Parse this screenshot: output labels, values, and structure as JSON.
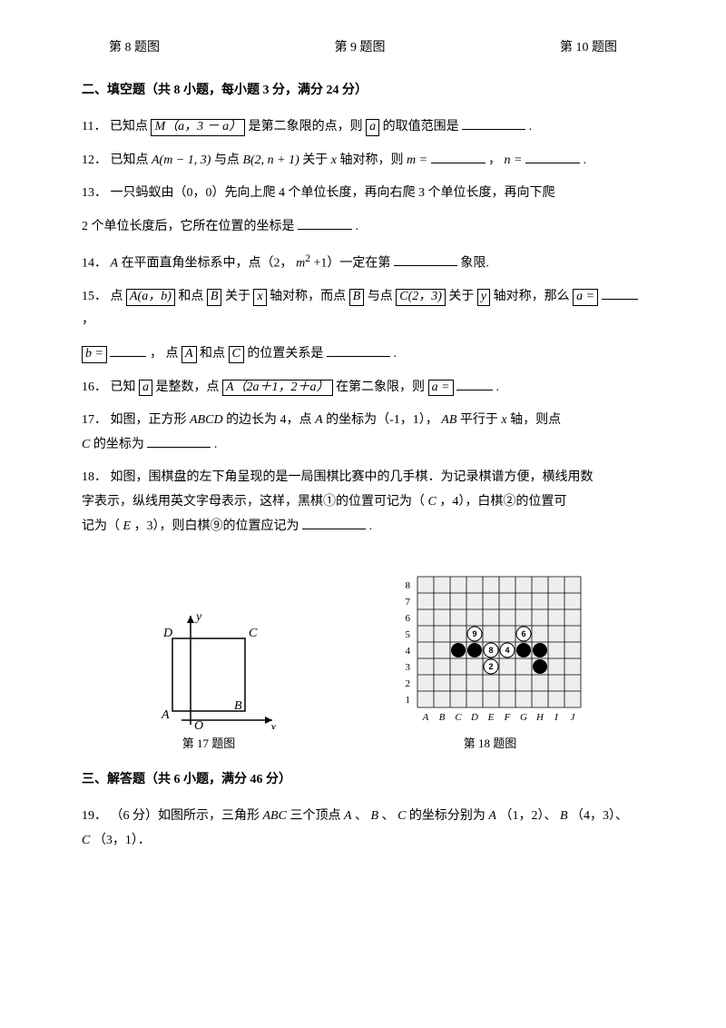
{
  "figLabels": [
    "第 8 题图",
    "第 9 题图",
    "第 10 题图"
  ],
  "section2": {
    "header": "二、填空题（共 8 小题，每小题 3 分，满分 24 分）"
  },
  "q11": {
    "num": "11．",
    "t1": "已知点",
    "box1": "M（a，3 － a）",
    "t2": "是第二象限的点，则",
    "box2": "a",
    "t3": "的取值范围是",
    "t4": "."
  },
  "q12": {
    "num": "12．",
    "t1": "已知点 ",
    "expr1": "A(m − 1, 3)",
    "t2": " 与点 ",
    "expr2": "B(2,  n + 1)",
    "t3": " 关于 ",
    "x": "x",
    "t4": " 轴对称，则 ",
    "m": "m =",
    "t5": "，  ",
    "n": "n =",
    "t6": "."
  },
  "q13": {
    "num": "13．",
    "line1": "一只蚂蚁由（0，0）先向上爬 4 个单位长度，再向右爬 3 个单位长度，再向下爬",
    "line2": "2 个单位长度后，它所在位置的坐标是",
    "t3": "."
  },
  "q14": {
    "num": "14．",
    "t1": "A",
    "t2": " 在平面直角坐标系中，点（2， ",
    "expr": "m",
    "sup": "2",
    "t3": " +1）一定在第 ",
    "t4": "象限."
  },
  "q15": {
    "num": "15．",
    "t1": "点",
    "box1": "A(a，b)",
    "t2": "和点",
    "box2": "B",
    "t3": "关于",
    "box3": "x",
    "t4": "轴对称，而点",
    "box4": "B",
    "t5": "与点",
    "box5": "C(2，3)",
    "t6": "关于",
    "box6": "y",
    "t7": "轴对称，那么",
    "box7": "a =",
    "t8": " ，",
    "line2box": "b =",
    "t9": " ， 点",
    "box8": "A",
    "t10": "和点",
    "box9": "C",
    "t11": "的位置关系是",
    "t12": "."
  },
  "q16": {
    "num": "16．",
    "t1": "已知",
    "box1": "a",
    "t2": "是整数，点",
    "box2": "A（2a＋1，2＋a）",
    "t3": "在第二象限，则",
    "box3": "a =",
    "t4": "."
  },
  "q17": {
    "num": "17．",
    "t1": "如图，正方形 ",
    "abcd": "ABCD",
    "t2": " 的边长为 4，点 ",
    "a": "A",
    "t3": " 的坐标为（-1，1）， ",
    "ab": "AB",
    "t4": " 平行于 ",
    "x": "x",
    "t5": " 轴，则点",
    "c": "C",
    "t6": " 的坐标为 ",
    "t7": "."
  },
  "q18": {
    "num": "18．",
    "line1": "如图，围棋盘的左下角呈现的是一局围棋比赛中的几手棋．为记录棋谱方便，横线用数",
    "line2a": "字表示，纵线用英文字母表示，这样，黑棋①的位置可记为（",
    "c": "C",
    "line2b": "，4），白棋②的位置可",
    "line3a": "记为（",
    "e": "E",
    "line3b": "，3），则白棋⑨的位置应记为 ",
    "t4": "."
  },
  "fig17": {
    "caption": "第 17 题图",
    "labels": {
      "D": "D",
      "C": "C",
      "A": "A",
      "B": "B",
      "O": "O",
      "x": "x",
      "y": "y"
    },
    "colors": {
      "stroke": "#000000",
      "bg": "#ffffff"
    }
  },
  "fig18": {
    "caption": "第 18 题图",
    "rows": [
      "8",
      "7",
      "6",
      "5",
      "4",
      "3",
      "2",
      "1"
    ],
    "cols": [
      "A",
      "B",
      "C",
      "D",
      "E",
      "F",
      "G",
      "H",
      "I",
      "J"
    ],
    "black_stones": [
      {
        "col": "C",
        "row": 4
      },
      {
        "col": "D",
        "row": 4
      },
      {
        "col": "H",
        "row": 4
      },
      {
        "col": "H",
        "row": 3
      },
      {
        "col": "G",
        "row": 4
      }
    ],
    "white_stones": [
      {
        "col": "D",
        "row": 5,
        "label": "9"
      },
      {
        "col": "E",
        "row": 4,
        "label": "8"
      },
      {
        "col": "E",
        "row": 3,
        "label": "2"
      },
      {
        "col": "G",
        "row": 5,
        "label": "6"
      },
      {
        "col": "F",
        "row": 4,
        "label": "4"
      }
    ],
    "colors": {
      "grid": "#000000",
      "cell_bg": "#eeeeee",
      "black": "#000000",
      "white": "#ffffff",
      "stroke": "#000000"
    }
  },
  "section3": {
    "header": "三、解答题（共 6 小题，满分 46 分）"
  },
  "q19": {
    "num": "19．",
    "t1": "（6 分）如图所示，三角形 ",
    "abc": "ABC",
    "t2": " 三个顶点 ",
    "a": "A",
    "t3": "、",
    "b": "B",
    "t4": "、",
    "c": "C",
    "t5": " 的坐标分别为 ",
    "a2": "A",
    "t6": "（1，2）、",
    "b2": "B",
    "t7": "（4，3）、",
    "c2": "C",
    "t8": "（3，1）．"
  }
}
